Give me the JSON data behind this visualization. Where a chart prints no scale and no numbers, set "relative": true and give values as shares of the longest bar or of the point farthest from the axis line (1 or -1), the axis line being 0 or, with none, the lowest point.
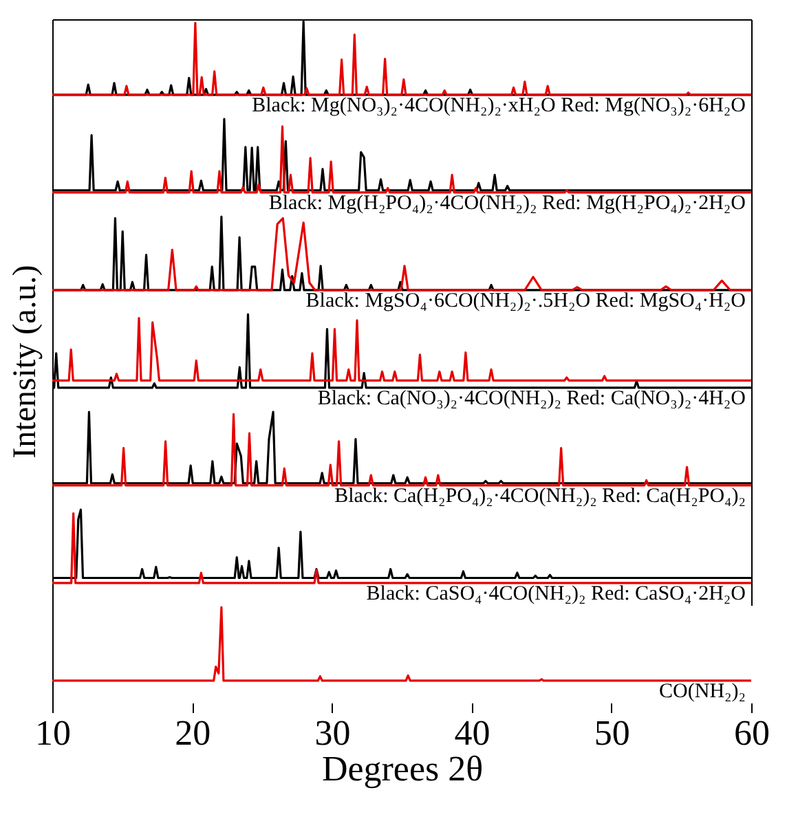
{
  "chart_data": [
    {
      "type": "line",
      "relative": true,
      "xlim": [
        10,
        60
      ],
      "tick_labels": false,
      "annotations": [
        "Black: Mg(NO₃)₂·4CO(NH₂)₂·xH₂O Red: Mg(NO₃)₂·6H₂O"
      ],
      "series": [
        {
          "color": "#000000",
          "x": [
            10,
            12.42,
            12.57,
            12.72,
            14.28,
            14.43,
            14.58,
            16.64,
            16.79,
            16.94,
            17.69,
            17.84,
            17.99,
            18.35,
            18.5,
            18.65,
            19.63,
            19.78,
            19.93,
            20.85,
            21.0,
            21.15,
            23.05,
            23.2,
            23.35,
            23.91,
            24.06,
            24.21,
            26.41,
            26.56,
            26.71,
            27.08,
            27.23,
            27.38,
            27.82,
            27.97,
            28.12,
            29.45,
            29.6,
            29.75,
            36.55,
            36.7,
            36.85,
            39.75,
            39.9,
            40.05,
            60
          ],
          "values": [
            0,
            0,
            0.14,
            0,
            0,
            0.16,
            0,
            0,
            0.07,
            0,
            0,
            0.04,
            0,
            0,
            0.13,
            0,
            0,
            0.23,
            0,
            0,
            0.08,
            0,
            0,
            0.04,
            0,
            0,
            0.06,
            0,
            0,
            0.16,
            0,
            0,
            0.25,
            0,
            0,
            1,
            0,
            0,
            0.06,
            0,
            0,
            0.06,
            0,
            0,
            0.07,
            0,
            0
          ]
        },
        {
          "color": "#e60000",
          "x": [
            10,
            15.16,
            15.31,
            15.46,
            20.08,
            20.23,
            20.38,
            20.54,
            20.69,
            20.84,
            21.45,
            21.6,
            21.75,
            24.95,
            25.1,
            25.25,
            28.05,
            28.2,
            28.35,
            30.55,
            30.7,
            30.85,
            31.47,
            31.62,
            31.77,
            32.35,
            32.5,
            32.65,
            33.65,
            33.8,
            33.95,
            34.99,
            35.14,
            35.29,
            37.91,
            38.06,
            38.21,
            42.85,
            43.0,
            43.15,
            43.65,
            43.8,
            43.95,
            45.29,
            45.44,
            45.59,
            55.35,
            55.5,
            55.65,
            60
          ],
          "values": [
            0,
            0,
            0.12,
            0,
            0,
            0.98,
            0,
            0,
            0.24,
            0,
            0,
            0.32,
            0,
            0,
            0.1,
            0,
            0,
            0.09,
            0,
            0,
            0.48,
            0,
            0,
            0.82,
            0,
            0,
            0.11,
            0,
            0,
            0.49,
            0,
            0,
            0.21,
            0,
            0,
            0.06,
            0,
            0,
            0.1,
            0,
            0,
            0.18,
            0,
            0,
            0.12,
            0,
            0,
            0.03,
            0,
            0
          ]
        }
      ]
    },
    {
      "type": "line",
      "relative": true,
      "xlim": [
        10,
        60
      ],
      "tick_labels": false,
      "annotations": [
        "Black: Mg(H₂PO₄)₂·4CO(NH₂)₂  Red: Mg(H₂PO₄)₂·2H₂O"
      ],
      "series": [
        {
          "color": "#000000",
          "x": [
            10,
            12.66,
            12.81,
            12.96,
            14.53,
            14.68,
            14.83,
            20.5,
            20.65,
            20.8,
            22.15,
            22.3,
            22.45,
            23.67,
            23.82,
            23.97,
            24.13,
            24.28,
            24.43,
            24.55,
            24.7,
            24.85,
            26.05,
            26.2,
            26.35,
            26.55,
            26.7,
            26.85,
            29.19,
            29.34,
            29.49,
            31.93,
            32.08,
            32.3,
            32.45,
            33.35,
            33.5,
            33.65,
            35.45,
            35.6,
            35.75,
            36.92,
            37.07,
            37.22,
            40.35,
            40.5,
            40.65,
            41.5,
            41.65,
            41.8,
            42.41,
            42.56,
            42.71,
            60
          ],
          "values": [
            0.03,
            0.03,
            0.78,
            0.03,
            0.03,
            0.15,
            0.03,
            0.03,
            0.16,
            0.03,
            0.03,
            1,
            0.03,
            0.03,
            0.62,
            0.03,
            0.03,
            0.61,
            0.03,
            0.03,
            0.62,
            0.03,
            0.03,
            0.15,
            0.03,
            0.03,
            0.7,
            0.03,
            0.03,
            0.32,
            0.03,
            0.03,
            0.55,
            0.48,
            0.03,
            0.03,
            0.18,
            0.03,
            0.03,
            0.17,
            0.03,
            0.03,
            0.15,
            0.03,
            0.03,
            0.13,
            0.03,
            0.03,
            0.24,
            0.03,
            0.03,
            0.09,
            0.03,
            0.03
          ]
        },
        {
          "color": "#e60000",
          "x": [
            10,
            15.23,
            15.38,
            15.53,
            17.94,
            18.09,
            18.24,
            19.8,
            19.95,
            20.1,
            21.81,
            21.96,
            22.11,
            23.49,
            23.64,
            23.79,
            24.62,
            24.77,
            24.92,
            26.31,
            26.46,
            26.61,
            26.9,
            27.05,
            27.2,
            28.31,
            28.46,
            28.61,
            29.79,
            29.94,
            30.09,
            33.85,
            34.0,
            34.15,
            38.45,
            38.6,
            38.75,
            40.15,
            40.3,
            40.45,
            46.65,
            46.8,
            46.95,
            60
          ],
          "values": [
            0,
            0,
            0.15,
            0,
            0,
            0.2,
            0,
            0,
            0.29,
            0,
            0,
            0.29,
            0,
            0,
            0.07,
            0,
            0,
            0.11,
            0,
            0,
            0.9,
            0,
            0,
            0.24,
            0,
            0,
            0.47,
            0,
            0,
            0.42,
            0,
            0,
            0.06,
            0,
            0,
            0.24,
            0,
            0,
            0.06,
            0,
            0,
            0.03,
            0,
            0
          ]
        }
      ]
    },
    {
      "type": "line",
      "relative": true,
      "xlim": [
        10,
        60
      ],
      "tick_labels": false,
      "annotations": [
        "Black: MgSO₄·6CO(NH₂)₂·.5H₂O  Red: MgSO₄·H₂O"
      ],
      "series": [
        {
          "color": "#000000",
          "x": [
            10,
            12.05,
            12.2,
            12.35,
            13.45,
            13.6,
            13.75,
            14.35,
            14.5,
            14.65,
            14.88,
            15.03,
            15.18,
            15.58,
            15.73,
            15.88,
            16.57,
            16.72,
            16.87,
            21.28,
            21.43,
            21.58,
            21.95,
            22.1,
            22.25,
            23.24,
            23.39,
            23.54,
            24.13,
            24.28,
            24.5,
            24.65,
            26.31,
            26.46,
            26.61,
            27.01,
            27.16,
            27.31,
            27.71,
            27.86,
            28.01,
            29.05,
            29.2,
            29.35,
            30.88,
            31.03,
            31.18,
            32.65,
            32.8,
            32.95,
            34.75,
            34.9,
            35.05,
            41.25,
            41.4,
            41.55,
            60
          ],
          "values": [
            0,
            0,
            0.07,
            0,
            0,
            0.08,
            0,
            0,
            0.98,
            0,
            0,
            0.8,
            0,
            0,
            0.11,
            0,
            0,
            0.48,
            0,
            0,
            0.32,
            0,
            0,
            1,
            0,
            0,
            0.72,
            0,
            0,
            0.32,
            0.32,
            0,
            0,
            0.28,
            0,
            0,
            0.19,
            0,
            0,
            0.23,
            0,
            0,
            0.33,
            0,
            0,
            0.07,
            0,
            0,
            0.07,
            0,
            0,
            0.11,
            0,
            0,
            0.07,
            0,
            0
          ]
        },
        {
          "color": "#e60000",
          "x": [
            10,
            18.3,
            18.58,
            18.86,
            20.15,
            20.3,
            20.45,
            25.7,
            26.1,
            26.5,
            26.9,
            27.3,
            27.97,
            28.4,
            28.8,
            34.95,
            35.2,
            35.45,
            43.8,
            44.4,
            45.0,
            47.2,
            47.55,
            47.9,
            53.5,
            53.9,
            54.3,
            57.3,
            57.9,
            58.5,
            60
          ],
          "values": [
            0,
            0,
            0.55,
            0,
            0,
            0.05,
            0,
            0,
            0.9,
            0.98,
            0.2,
            0.1,
            0.92,
            0.1,
            0,
            0,
            0.33,
            0,
            0,
            0.18,
            0,
            0,
            0.04,
            0,
            0,
            0.05,
            0,
            0,
            0.13,
            0,
            0
          ]
        }
      ]
    },
    {
      "type": "line",
      "relative": true,
      "xlim": [
        10,
        60
      ],
      "tick_labels": false,
      "ylabel": "Intensity (a.u.)",
      "annotations": [
        "Black: Ca(NO₃)₂·4CO(NH₂)₂  Red: Ca(NO₃)₂·4H₂O"
      ],
      "series": [
        {
          "color": "#000000",
          "x": [
            10,
            10.13,
            10.28,
            10.43,
            14.05,
            14.2,
            14.35,
            17.15,
            17.3,
            17.45,
            23.25,
            23.4,
            23.55,
            23.85,
            24.0,
            24.15,
            29.51,
            29.66,
            29.81,
            32.15,
            32.3,
            32.45,
            51.65,
            51.8,
            51.95,
            60
          ],
          "values": [
            0,
            0,
            0.47,
            0,
            0,
            0.14,
            0,
            0,
            0.06,
            0,
            0,
            0.28,
            0,
            0,
            1,
            0,
            0,
            0.8,
            0,
            0,
            0.2,
            0,
            0,
            0.09,
            0,
            0
          ]
        },
        {
          "color": "#e60000",
          "x": [
            10,
            11.19,
            11.34,
            11.49,
            14.45,
            14.6,
            14.75,
            16.05,
            16.2,
            16.35,
            17.02,
            17.17,
            17.5,
            17.65,
            20.15,
            20.3,
            20.45,
            24.75,
            24.9,
            25.05,
            28.45,
            28.6,
            28.75,
            30.05,
            30.2,
            30.35,
            31.05,
            31.2,
            31.35,
            31.65,
            31.8,
            31.95,
            33.45,
            33.6,
            33.75,
            34.35,
            34.5,
            34.65,
            36.15,
            36.3,
            36.45,
            37.55,
            37.7,
            37.85,
            38.45,
            38.6,
            38.75,
            39.42,
            39.57,
            39.72,
            41.25,
            41.4,
            41.55,
            46.65,
            46.8,
            46.95,
            49.35,
            49.5,
            49.65,
            60
          ],
          "values": [
            0.1,
            0.1,
            0.52,
            0.1,
            0.1,
            0.19,
            0.1,
            0.1,
            0.95,
            0.1,
            0.1,
            0.89,
            0.4,
            0.1,
            0.1,
            0.37,
            0.1,
            0.1,
            0.25,
            0.1,
            0.1,
            0.47,
            0.1,
            0.1,
            0.8,
            0.1,
            0.1,
            0.25,
            0.1,
            0.1,
            0.92,
            0.1,
            0.1,
            0.22,
            0.1,
            0.1,
            0.22,
            0.1,
            0.1,
            0.45,
            0.1,
            0.1,
            0.22,
            0.1,
            0.1,
            0.22,
            0.1,
            0.1,
            0.48,
            0.1,
            0.1,
            0.25,
            0.1,
            0.1,
            0.14,
            0.1,
            0.1,
            0.16,
            0.1,
            0.1
          ]
        }
      ]
    },
    {
      "type": "line",
      "relative": true,
      "xlim": [
        10,
        60
      ],
      "tick_labels": false,
      "annotations": [
        "Black: Ca(H₂PO₄)₂·4CO(NH₂)₂  Red: Ca(H₂PO₄)₂"
      ],
      "series": [
        {
          "color": "#000000",
          "x": [
            10,
            12.48,
            12.63,
            12.78,
            14.15,
            14.3,
            14.45,
            19.75,
            19.9,
            20.05,
            21.31,
            21.46,
            21.61,
            21.95,
            22.1,
            22.25,
            23.05,
            23.2,
            23.5,
            23.65,
            24.45,
            24.6,
            24.75,
            25.35,
            25.5,
            25.8,
            25.95,
            29.15,
            29.3,
            29.45,
            31.55,
            31.7,
            31.85,
            34.25,
            34.4,
            34.55,
            35.25,
            35.4,
            35.55,
            40.85,
            41.0,
            41.15,
            41.95,
            42.1,
            42.25,
            60
          ],
          "values": [
            0.03,
            0.03,
            1,
            0.03,
            0.03,
            0.15,
            0.03,
            0.03,
            0.27,
            0.03,
            0.03,
            0.33,
            0.03,
            0.03,
            0.12,
            0.03,
            0.03,
            0.57,
            0.4,
            0.03,
            0.03,
            0.33,
            0.03,
            0.03,
            0.63,
            1,
            0.03,
            0.03,
            0.17,
            0.03,
            0.03,
            0.63,
            0.03,
            0.03,
            0.14,
            0.03,
            0.03,
            0.11,
            0.03,
            0.03,
            0.06,
            0.03,
            0.03,
            0.06,
            0.03,
            0.03
          ]
        },
        {
          "color": "#e60000",
          "x": [
            10,
            14.95,
            15.1,
            15.25,
            17.95,
            18.1,
            18.25,
            22.82,
            22.97,
            23.12,
            23.95,
            24.1,
            24.25,
            26.45,
            26.6,
            26.75,
            29.75,
            29.9,
            30.05,
            30.35,
            30.5,
            30.65,
            32.65,
            32.8,
            32.95,
            36.55,
            36.7,
            36.85,
            37.45,
            37.6,
            37.75,
            46.25,
            46.4,
            46.55,
            52.35,
            52.5,
            52.65,
            55.25,
            55.4,
            55.55,
            60
          ],
          "values": [
            0,
            0,
            0.51,
            0,
            0,
            0.6,
            0,
            0,
            0.97,
            0,
            0,
            0.71,
            0,
            0,
            0.23,
            0,
            0,
            0.28,
            0,
            0,
            0.6,
            0,
            0,
            0.14,
            0,
            0,
            0.11,
            0,
            0,
            0.14,
            0,
            0,
            0.51,
            0,
            0,
            0.07,
            0,
            0,
            0.25,
            0,
            0
          ]
        }
      ]
    },
    {
      "type": "line",
      "relative": true,
      "xlim": [
        10,
        60
      ],
      "tick_labels": false,
      "annotations": [
        "Black: CaSO₄·4CO(NH₂)₂  Red: CaSO₄·2H₂O"
      ],
      "series": [
        {
          "color": "#000000",
          "x": [
            10,
            11.71,
            11.86,
            12.04,
            12.19,
            16.28,
            16.43,
            16.58,
            17.27,
            17.42,
            17.57,
            18.25,
            18.4,
            18.55,
            23.05,
            23.2,
            23.35,
            23.41,
            23.56,
            23.71,
            23.92,
            24.07,
            24.22,
            26.05,
            26.2,
            26.35,
            27.61,
            27.76,
            27.91,
            28.75,
            28.9,
            29.05,
            29.65,
            29.8,
            29.95,
            30.15,
            30.3,
            30.45,
            34.05,
            34.2,
            34.35,
            35.25,
            35.4,
            35.55,
            39.25,
            39.4,
            39.55,
            43.11,
            43.26,
            43.41,
            44.41,
            44.56,
            44.71,
            45.45,
            45.6,
            45.75,
            60
          ],
          "values": [
            0.07,
            0.07,
            0.87,
            1,
            0.07,
            0.07,
            0.19,
            0.07,
            0.07,
            0.22,
            0.07,
            0.07,
            0.08,
            0.07,
            0.07,
            0.35,
            0.07,
            0.07,
            0.23,
            0.07,
            0.07,
            0.3,
            0.07,
            0.07,
            0.48,
            0.07,
            0.07,
            0.7,
            0.07,
            0.07,
            0.19,
            0.07,
            0.07,
            0.15,
            0.07,
            0.07,
            0.17,
            0.07,
            0.07,
            0.19,
            0.07,
            0.07,
            0.12,
            0.07,
            0.07,
            0.16,
            0.07,
            0.07,
            0.14,
            0.07,
            0.07,
            0.1,
            0.07,
            0.07,
            0.11,
            0.07,
            0.07
          ]
        },
        {
          "color": "#e60000",
          "x": [
            10,
            11.36,
            11.51,
            11.66,
            20.5,
            20.65,
            20.8,
            28.75,
            28.9,
            29.05,
            60
          ],
          "values": [
            0,
            0,
            0.95,
            0,
            0,
            0.14,
            0,
            0,
            0.18,
            0,
            0
          ]
        }
      ]
    },
    {
      "type": "line",
      "relative": true,
      "xlim": [
        10,
        60
      ],
      "xticks": [
        10,
        20,
        30,
        40,
        50,
        60
      ],
      "tick_labels": "x",
      "xlabel": "Degrees 2θ",
      "annotations": [
        "CO(NH₂)₂"
      ],
      "series": [
        {
          "color": "#e60000",
          "x": [
            10,
            21.55,
            21.7,
            21.9,
            22.1,
            22.25,
            29.01,
            29.16,
            29.31,
            35.3,
            35.45,
            35.6,
            44.85,
            45.0,
            45.15,
            60
          ],
          "values": [
            0,
            0,
            0.19,
            0.1,
            1,
            0,
            0,
            0.06,
            0,
            0,
            0.07,
            0,
            0,
            0.02,
            0,
            0
          ]
        }
      ]
    }
  ]
}
